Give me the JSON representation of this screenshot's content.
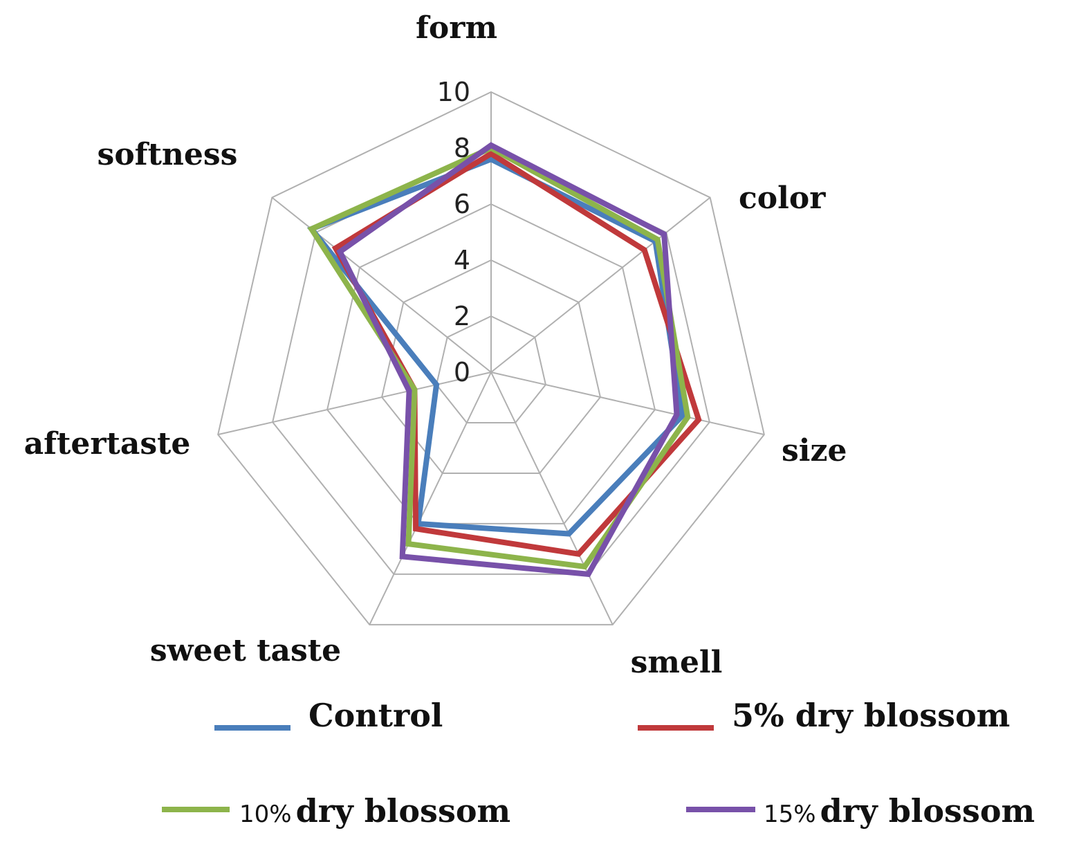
{
  "chart_data": {
    "type": "radar",
    "axes": [
      "form",
      "color",
      "size",
      "smell",
      "sweet taste",
      "aftertaste",
      "softness"
    ],
    "rlim": [
      0,
      10
    ],
    "ticks": [
      "0",
      "2",
      "4",
      "6",
      "8",
      "10"
    ],
    "tick_values": [
      0,
      2,
      4,
      6,
      8,
      10
    ],
    "grid": true,
    "legend_position": "bottom",
    "series": [
      {
        "name": "Control",
        "color": "#4a7ebb",
        "values": [
          7.6,
          7.5,
          7.0,
          6.4,
          6.0,
          2.0,
          8.2
        ]
      },
      {
        "name": "5% dry blossom",
        "color": "#c0393b",
        "values": [
          7.8,
          7.0,
          7.6,
          7.2,
          6.2,
          2.8,
          7.1
        ]
      },
      {
        "name": "10% dry blossom",
        "color": "#8db44b",
        "values": [
          8.0,
          7.6,
          7.2,
          7.7,
          6.8,
          2.8,
          8.2
        ]
      },
      {
        "name": "15% dry blossom",
        "color": "#7851a9",
        "values": [
          8.1,
          7.9,
          6.8,
          8.0,
          7.3,
          3.0,
          6.9
        ]
      }
    ],
    "legend": [
      {
        "prefix": "",
        "text": "Control"
      },
      {
        "prefix": "",
        "text": "5% dry blossom"
      },
      {
        "prefix": "10%",
        "text": "dry blossom"
      },
      {
        "prefix": "15%",
        "text": "dry blossom"
      }
    ]
  }
}
